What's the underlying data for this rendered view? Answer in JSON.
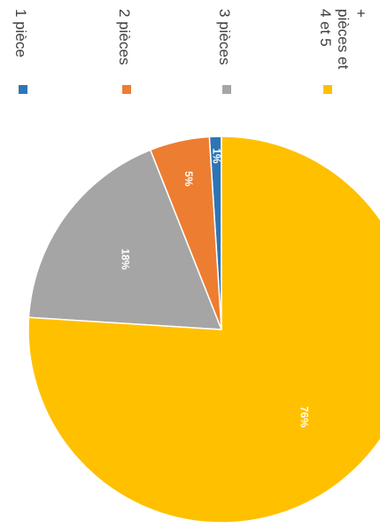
{
  "chart_data": {
    "type": "pie",
    "title": "",
    "orientation": "rotated-90-clockwise",
    "legend_position": "top",
    "categories": [
      "1 pièce",
      "2 pièces",
      "3 pièces",
      "4 et 5 pièces et +"
    ],
    "legend_lines": [
      [
        "1 pièce"
      ],
      [
        "2 pièces"
      ],
      [
        "3 pièces"
      ],
      [
        "4 et 5",
        "pièces et",
        "+"
      ]
    ],
    "values": [
      1,
      5,
      18,
      76
    ],
    "data_labels": [
      "1%",
      "5%",
      "18%",
      "76%"
    ],
    "colors": [
      "#2E75B6",
      "#ED7D31",
      "#A5A5A5",
      "#FFC000"
    ]
  }
}
